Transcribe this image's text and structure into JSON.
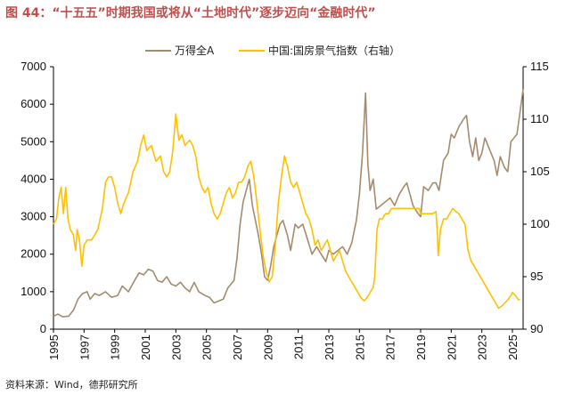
{
  "figure": {
    "title": "图 44：“十五五”时期我国或将从“土地时代”逐步迈向“金融时代”",
    "source": "资料来源：Wind，德邦研究所"
  },
  "chart_data": {
    "type": "line",
    "title": "图 44：“十五五”时期我国或将从“土地时代”逐步迈向“金融时代”",
    "xlim": [
      1995,
      2025.7
    ],
    "x_ticks": [
      "1995",
      "1997",
      "1999",
      "2001",
      "2003",
      "2005",
      "2007",
      "2009",
      "2011",
      "2013",
      "2015",
      "2017",
      "2019",
      "2021",
      "2023",
      "2025"
    ],
    "y_left": {
      "lim": [
        0,
        7000
      ],
      "ticks": [
        0,
        1000,
        2000,
        3000,
        4000,
        5000,
        6000,
        7000
      ]
    },
    "y_right": {
      "lim": [
        90,
        115
      ],
      "ticks": [
        90,
        95,
        100,
        105,
        110,
        115
      ],
      "note": "右轴"
    },
    "legend_position": "top-center",
    "colors": {
      "wind_a": "#A58B6E",
      "climate": "#FFC000",
      "title": "#C0504D"
    },
    "series": [
      {
        "name": "万得全A",
        "axis": "left",
        "points": [
          [
            1995.0,
            350
          ],
          [
            1995.3,
            400
          ],
          [
            1995.6,
            330
          ],
          [
            1996.0,
            350
          ],
          [
            1996.3,
            500
          ],
          [
            1996.6,
            800
          ],
          [
            1996.9,
            950
          ],
          [
            1997.2,
            1000
          ],
          [
            1997.4,
            800
          ],
          [
            1997.7,
            950
          ],
          [
            1998.0,
            900
          ],
          [
            1998.4,
            1000
          ],
          [
            1998.8,
            850
          ],
          [
            1999.2,
            900
          ],
          [
            1999.5,
            1150
          ],
          [
            1999.9,
            1000
          ],
          [
            2000.3,
            1300
          ],
          [
            2000.6,
            1500
          ],
          [
            2000.9,
            1450
          ],
          [
            2001.2,
            1600
          ],
          [
            2001.5,
            1550
          ],
          [
            2001.8,
            1300
          ],
          [
            2002.1,
            1250
          ],
          [
            2002.4,
            1400
          ],
          [
            2002.7,
            1200
          ],
          [
            2003.0,
            1150
          ],
          [
            2003.3,
            1250
          ],
          [
            2003.6,
            1100
          ],
          [
            2003.9,
            1000
          ],
          [
            2004.2,
            1250
          ],
          [
            2004.5,
            1000
          ],
          [
            2004.9,
            900
          ],
          [
            2005.2,
            850
          ],
          [
            2005.5,
            700
          ],
          [
            2005.8,
            750
          ],
          [
            2006.1,
            800
          ],
          [
            2006.4,
            1100
          ],
          [
            2006.8,
            1300
          ],
          [
            2007.0,
            1900
          ],
          [
            2007.2,
            2800
          ],
          [
            2007.4,
            3400
          ],
          [
            2007.6,
            3700
          ],
          [
            2007.8,
            4000
          ],
          [
            2008.0,
            3300
          ],
          [
            2008.2,
            2900
          ],
          [
            2008.4,
            2500
          ],
          [
            2008.6,
            2000
          ],
          [
            2008.8,
            1400
          ],
          [
            2009.0,
            1300
          ],
          [
            2009.2,
            1700
          ],
          [
            2009.4,
            2200
          ],
          [
            2009.6,
            2500
          ],
          [
            2009.8,
            2800
          ],
          [
            2010.0,
            2900
          ],
          [
            2010.3,
            2500
          ],
          [
            2010.5,
            2100
          ],
          [
            2010.8,
            2800
          ],
          [
            2011.0,
            2700
          ],
          [
            2011.3,
            2800
          ],
          [
            2011.6,
            2400
          ],
          [
            2011.9,
            2000
          ],
          [
            2012.2,
            2200
          ],
          [
            2012.5,
            2000
          ],
          [
            2012.8,
            1800
          ],
          [
            2013.0,
            2100
          ],
          [
            2013.3,
            2000
          ],
          [
            2013.6,
            2100
          ],
          [
            2013.9,
            2200
          ],
          [
            2014.2,
            2000
          ],
          [
            2014.5,
            2300
          ],
          [
            2014.8,
            2900
          ],
          [
            2015.0,
            3600
          ],
          [
            2015.2,
            4700
          ],
          [
            2015.4,
            6300
          ],
          [
            2015.55,
            4400
          ],
          [
            2015.7,
            3700
          ],
          [
            2015.9,
            4000
          ],
          [
            2016.1,
            3200
          ],
          [
            2016.4,
            3300
          ],
          [
            2016.7,
            3400
          ],
          [
            2017.0,
            3500
          ],
          [
            2017.3,
            3300
          ],
          [
            2017.6,
            3600
          ],
          [
            2017.9,
            3800
          ],
          [
            2018.1,
            3900
          ],
          [
            2018.3,
            3600
          ],
          [
            2018.5,
            3300
          ],
          [
            2018.8,
            3100
          ],
          [
            2019.0,
            3000
          ],
          [
            2019.2,
            3800
          ],
          [
            2019.5,
            3700
          ],
          [
            2019.8,
            3900
          ],
          [
            2020.0,
            3900
          ],
          [
            2020.2,
            3700
          ],
          [
            2020.5,
            4500
          ],
          [
            2020.8,
            4700
          ],
          [
            2021.0,
            5200
          ],
          [
            2021.2,
            5100
          ],
          [
            2021.5,
            5400
          ],
          [
            2021.8,
            5600
          ],
          [
            2022.0,
            5700
          ],
          [
            2022.2,
            5000
          ],
          [
            2022.4,
            4600
          ],
          [
            2022.6,
            5100
          ],
          [
            2022.8,
            4500
          ],
          [
            2023.0,
            4700
          ],
          [
            2023.2,
            5100
          ],
          [
            2023.5,
            4800
          ],
          [
            2023.8,
            4500
          ],
          [
            2024.0,
            4100
          ],
          [
            2024.2,
            4600
          ],
          [
            2024.5,
            4300
          ],
          [
            2024.7,
            4200
          ],
          [
            2024.9,
            5000
          ],
          [
            2025.1,
            5100
          ],
          [
            2025.3,
            5200
          ],
          [
            2025.5,
            5800
          ],
          [
            2025.7,
            6400
          ]
        ]
      },
      {
        "name": "中国:国房景气指数（右轴）",
        "axis": "right",
        "points": [
          [
            1995.0,
            100.0
          ],
          [
            1995.2,
            100.5
          ],
          [
            1995.35,
            102.5
          ],
          [
            1995.5,
            103.5
          ],
          [
            1995.65,
            101.0
          ],
          [
            1995.8,
            103.5
          ],
          [
            1995.95,
            100.5
          ],
          [
            1996.1,
            99.5
          ],
          [
            1996.3,
            99.0
          ],
          [
            1996.45,
            97.5
          ],
          [
            1996.55,
            99.5
          ],
          [
            1996.7,
            98.5
          ],
          [
            1996.85,
            96.0
          ],
          [
            1997.0,
            98.0
          ],
          [
            1997.2,
            98.5
          ],
          [
            1997.5,
            98.5
          ],
          [
            1997.9,
            99.5
          ],
          [
            1998.2,
            101.5
          ],
          [
            1998.4,
            104.0
          ],
          [
            1998.6,
            104.5
          ],
          [
            1998.8,
            104.5
          ],
          [
            1999.0,
            103.5
          ],
          [
            1999.2,
            102.0
          ],
          [
            1999.4,
            101.0
          ],
          [
            1999.6,
            102.0
          ],
          [
            1999.9,
            103.0
          ],
          [
            2000.2,
            105.0
          ],
          [
            2000.5,
            106.0
          ],
          [
            2000.7,
            107.5
          ],
          [
            2000.9,
            108.5
          ],
          [
            2001.1,
            107.0
          ],
          [
            2001.4,
            107.5
          ],
          [
            2001.7,
            106.0
          ],
          [
            2002.0,
            106.5
          ],
          [
            2002.2,
            105.0
          ],
          [
            2002.4,
            104.5
          ],
          [
            2002.6,
            105.0
          ],
          [
            2002.8,
            107.0
          ],
          [
            2003.0,
            110.5
          ],
          [
            2003.2,
            108.0
          ],
          [
            2003.4,
            108.5
          ],
          [
            2003.6,
            107.5
          ],
          [
            2003.9,
            108.0
          ],
          [
            2004.1,
            107.5
          ],
          [
            2004.3,
            106.5
          ],
          [
            2004.5,
            104.5
          ],
          [
            2004.7,
            103.5
          ],
          [
            2004.9,
            103.0
          ],
          [
            2005.1,
            103.5
          ],
          [
            2005.3,
            102.0
          ],
          [
            2005.5,
            101.0
          ],
          [
            2005.7,
            100.5
          ],
          [
            2005.9,
            101.0
          ],
          [
            2006.1,
            102.0
          ],
          [
            2006.3,
            103.0
          ],
          [
            2006.5,
            103.5
          ],
          [
            2006.7,
            102.5
          ],
          [
            2006.9,
            103.0
          ],
          [
            2007.1,
            104.0
          ],
          [
            2007.3,
            104.0
          ],
          [
            2007.5,
            104.5
          ],
          [
            2007.7,
            105.5
          ],
          [
            2007.9,
            106.0
          ],
          [
            2008.1,
            104.5
          ],
          [
            2008.3,
            102.0
          ],
          [
            2008.5,
            99.5
          ],
          [
            2008.7,
            97.0
          ],
          [
            2008.9,
            95.5
          ],
          [
            2009.1,
            94.5
          ],
          [
            2009.3,
            95.0
          ],
          [
            2009.5,
            98.0
          ],
          [
            2009.7,
            102.0
          ],
          [
            2009.9,
            104.5
          ],
          [
            2010.1,
            106.5
          ],
          [
            2010.3,
            105.5
          ],
          [
            2010.5,
            104.0
          ],
          [
            2010.7,
            103.5
          ],
          [
            2010.9,
            104.0
          ],
          [
            2011.1,
            103.0
          ],
          [
            2011.3,
            102.0
          ],
          [
            2011.5,
            101.0
          ],
          [
            2011.7,
            100.5
          ],
          [
            2011.9,
            99.5
          ],
          [
            2012.1,
            98.0
          ],
          [
            2012.3,
            98.5
          ],
          [
            2012.5,
            97.5
          ],
          [
            2012.7,
            98.0
          ],
          [
            2012.9,
            98.5
          ],
          [
            2013.1,
            97.5
          ],
          [
            2013.3,
            96.5
          ],
          [
            2013.5,
            97.0
          ],
          [
            2013.7,
            97.5
          ],
          [
            2013.9,
            96.5
          ],
          [
            2014.1,
            95.5
          ],
          [
            2014.3,
            95.0
          ],
          [
            2014.5,
            94.5
          ],
          [
            2014.7,
            94.0
          ],
          [
            2014.9,
            93.5
          ],
          [
            2015.1,
            93.0
          ],
          [
            2015.3,
            92.7
          ],
          [
            2015.5,
            93.0
          ],
          [
            2015.7,
            93.5
          ],
          [
            2015.9,
            94.0
          ],
          [
            2016.0,
            95.0
          ],
          [
            2016.15,
            99.5
          ],
          [
            2016.3,
            100.5
          ],
          [
            2016.5,
            100.5
          ],
          [
            2016.7,
            101.0
          ],
          [
            2016.9,
            101.0
          ],
          [
            2017.1,
            101.5
          ],
          [
            2017.3,
            101.5
          ],
          [
            2017.5,
            101.5
          ],
          [
            2017.7,
            101.5
          ],
          [
            2017.9,
            101.5
          ],
          [
            2018.1,
            101.5
          ],
          [
            2018.3,
            101.5
          ],
          [
            2018.5,
            101.5
          ],
          [
            2018.7,
            101.5
          ],
          [
            2018.9,
            101.5
          ],
          [
            2019.0,
            101.0
          ],
          [
            2019.2,
            101.0
          ],
          [
            2019.5,
            101.0
          ],
          [
            2019.8,
            101.0
          ],
          [
            2020.0,
            101.2
          ],
          [
            2020.1,
            99.0
          ],
          [
            2020.15,
            97.0
          ],
          [
            2020.3,
            99.5
          ],
          [
            2020.5,
            100.5
          ],
          [
            2020.7,
            100.5
          ],
          [
            2020.9,
            101.0
          ],
          [
            2021.1,
            101.5
          ],
          [
            2021.3,
            101.2
          ],
          [
            2021.5,
            101.0
          ],
          [
            2021.7,
            100.5
          ],
          [
            2021.9,
            100.0
          ],
          [
            2022.1,
            97.5
          ],
          [
            2022.3,
            96.5
          ],
          [
            2022.5,
            96.0
          ],
          [
            2022.7,
            95.5
          ],
          [
            2022.9,
            95.0
          ],
          [
            2023.1,
            94.5
          ],
          [
            2023.3,
            94.0
          ],
          [
            2023.5,
            93.5
          ],
          [
            2023.7,
            93.0
          ],
          [
            2023.9,
            92.5
          ],
          [
            2024.1,
            92.0
          ],
          [
            2024.3,
            92.2
          ],
          [
            2024.5,
            92.5
          ],
          [
            2024.7,
            92.8
          ],
          [
            2024.9,
            93.2
          ],
          [
            2025.0,
            93.5
          ],
          [
            2025.2,
            93.2
          ],
          [
            2025.4,
            92.8
          ],
          [
            2025.5,
            92.8
          ]
        ]
      }
    ]
  }
}
